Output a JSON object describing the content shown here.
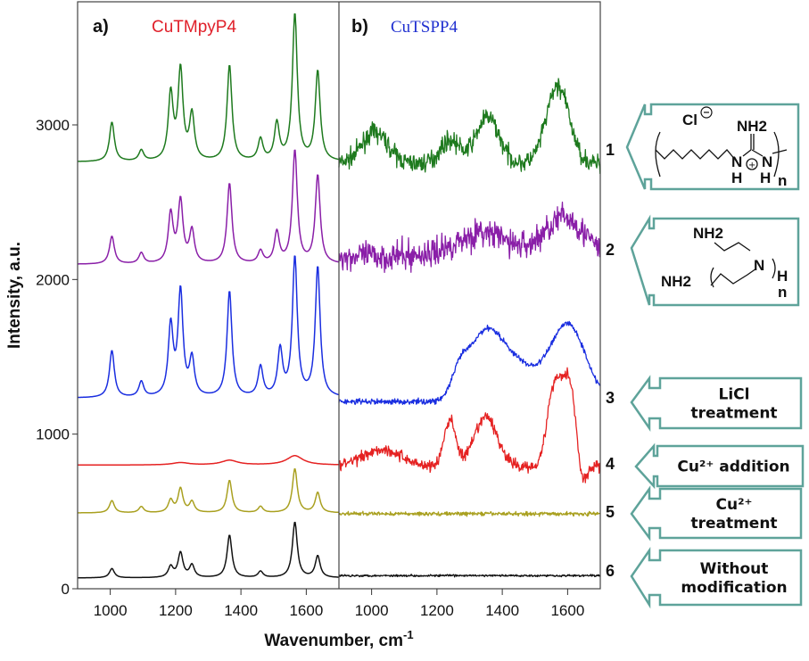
{
  "chart_data": [
    {
      "type": "line",
      "panel_label": "a)",
      "title": "CuTMpyP4",
      "title_color": "#e0202a",
      "xlabel": "Wavenumber, cm-1",
      "ylabel": "Intensity, a.u.",
      "xlim": [
        900,
        1700
      ],
      "ylim": [
        0,
        3750
      ],
      "xticks": [
        "1000",
        "1200",
        "1400",
        "1600"
      ],
      "yticks": [
        "0",
        "1000",
        "2000",
        "3000"
      ],
      "grid": false,
      "series": [
        {
          "label": "1",
          "color": "#1e7a1e",
          "baseline": 2760,
          "peaks": [
            [
              1005,
              255
            ],
            [
              1095,
              70
            ],
            [
              1185,
              430
            ],
            [
              1215,
              580
            ],
            [
              1250,
              295
            ],
            [
              1365,
              620
            ],
            [
              1460,
              140
            ],
            [
              1510,
              240
            ],
            [
              1565,
              950
            ],
            [
              1635,
              580
            ]
          ]
        },
        {
          "label": "2",
          "color": "#8a1fa8",
          "baseline": 2098,
          "peaks": [
            [
              1005,
              180
            ],
            [
              1095,
              70
            ],
            [
              1185,
              320
            ],
            [
              1215,
              400
            ],
            [
              1250,
              210
            ],
            [
              1365,
              520
            ],
            [
              1460,
              80
            ],
            [
              1510,
              200
            ],
            [
              1565,
              730
            ],
            [
              1635,
              570
            ]
          ]
        },
        {
          "label": "3",
          "color": "#1a2ee0",
          "baseline": 1233,
          "peaks": [
            [
              1005,
              305
            ],
            [
              1095,
              100
            ],
            [
              1185,
              455
            ],
            [
              1215,
              675
            ],
            [
              1250,
              240
            ],
            [
              1365,
              685
            ],
            [
              1460,
              195
            ],
            [
              1520,
              300
            ],
            [
              1565,
              900
            ],
            [
              1635,
              840
            ]
          ]
        },
        {
          "label": "4",
          "color": "#e52222",
          "baseline": 800,
          "peaks": [
            [
              1215,
              15
            ],
            [
              1365,
              30
            ],
            [
              1565,
              60
            ]
          ]
        },
        {
          "label": "5",
          "color": "#a9a020",
          "baseline": 490,
          "peaks": [
            [
              1005,
              80
            ],
            [
              1095,
              40
            ],
            [
              1185,
              80
            ],
            [
              1215,
              155
            ],
            [
              1250,
              70
            ],
            [
              1365,
              210
            ],
            [
              1460,
              40
            ],
            [
              1565,
              285
            ],
            [
              1635,
              130
            ]
          ]
        },
        {
          "label": "6",
          "color": "#111111",
          "baseline": 70,
          "peaks": [
            [
              1005,
              60
            ],
            [
              1185,
              70
            ],
            [
              1215,
              160
            ],
            [
              1250,
              80
            ],
            [
              1365,
              275
            ],
            [
              1460,
              40
            ],
            [
              1565,
              360
            ],
            [
              1635,
              140
            ]
          ]
        }
      ]
    },
    {
      "type": "line",
      "panel_label": "b)",
      "title": "CuTSPP4",
      "title_color": "#2030d0",
      "xlabel": "Wavenumber, cm-1",
      "xlim": [
        900,
        1700
      ],
      "ylim": [
        0,
        3750
      ],
      "xticks": [
        "1000",
        "1200",
        "1400",
        "1600"
      ],
      "grid": false,
      "series": [
        {
          "label": "1",
          "color": "#1e7a1e",
          "baseline": 2750,
          "noise": 70,
          "bands": [
            [
              1010,
              200,
              40
            ],
            [
              1240,
              150,
              30
            ],
            [
              1355,
              300,
              35
            ],
            [
              1570,
              500,
              35
            ]
          ]
        },
        {
          "label": "2",
          "color": "#8a1fa8",
          "baseline": 2150,
          "noise": 110,
          "bands": [
            [
              1340,
              150,
              80
            ],
            [
              1590,
              250,
              60
            ]
          ]
        },
        {
          "label": "3",
          "color": "#1a2ee0",
          "baseline": 1210,
          "noise": 22,
          "bands": [
            [
              1270,
              150,
              25
            ],
            [
              1345,
              400,
              50
            ],
            [
              1440,
              230,
              60
            ],
            [
              1600,
              500,
              55
            ]
          ]
        },
        {
          "label": "4",
          "color": "#e52222",
          "baseline": 790,
          "noise": 45,
          "bands": [
            [
              1030,
              110,
              60
            ],
            [
              1240,
              300,
              18
            ],
            [
              1350,
              320,
              35
            ],
            [
              1560,
              520,
              22
            ],
            [
              1605,
              520,
              20
            ],
            [
              1645,
              -140,
              12
            ]
          ]
        },
        {
          "label": "5",
          "color": "#a9a020",
          "baseline": 485,
          "noise": 15,
          "bands": []
        },
        {
          "label": "6",
          "color": "#111111",
          "baseline": 85,
          "noise": 8,
          "bands": []
        }
      ]
    }
  ],
  "xlabel_main": "Wavenumber, cm",
  "xlabel_sup": "-1",
  "annotations": {
    "box1_chem": {
      "counter_ion": "Cl",
      "nh2": "NH2",
      "n": "N",
      "h": "H",
      "sub_n": "n"
    },
    "box2_chem": {
      "nh2_top": "NH2",
      "nh2_left": "NH2",
      "n": "N",
      "h": "H",
      "sub_n": "n"
    },
    "box3": [
      "LiCl",
      "treatment"
    ],
    "box4": [
      "Cu²⁺ addition"
    ],
    "box5": [
      "Cu²⁺",
      "treatment"
    ],
    "box6": [
      "Without",
      "modification"
    ],
    "box_color": "#5ea39a"
  }
}
